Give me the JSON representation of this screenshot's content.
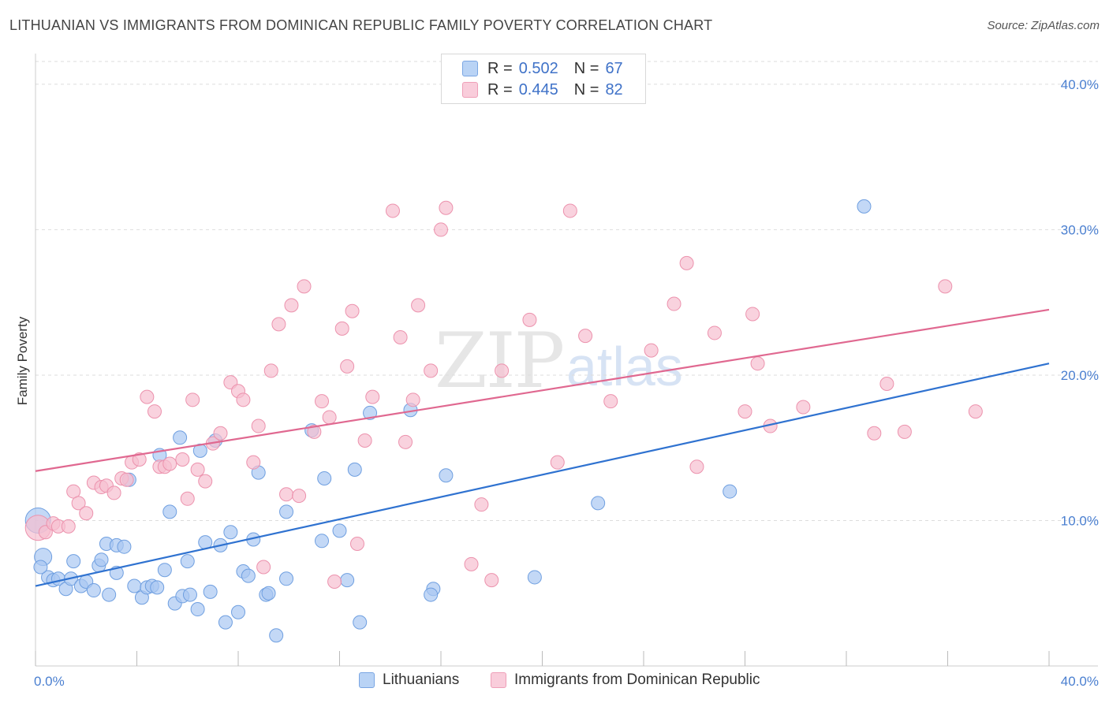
{
  "header": {
    "title": "LITHUANIAN VS IMMIGRANTS FROM DOMINICAN REPUBLIC FAMILY POVERTY CORRELATION CHART",
    "source": "Source: ZipAtlas.com"
  },
  "watermark": {
    "zip": "ZIP",
    "atlas": "atlas"
  },
  "legend": {
    "rows": [
      {
        "r_label": "R =",
        "r_value": "0.502",
        "n_label": "N =",
        "n_value": "67"
      },
      {
        "r_label": "R =",
        "r_value": "0.445",
        "n_label": "N =",
        "n_value": "82"
      }
    ]
  },
  "bottom_legend": {
    "series1": "Lithuanians",
    "series2": "Immigrants from Dominican Republic"
  },
  "colors": {
    "blue_fill": "#a9c8f2",
    "blue_stroke": "#6f9fe0",
    "blue_line": "#2f72d0",
    "pink_fill": "#f7bfd0",
    "pink_stroke": "#ec92ad",
    "pink_line": "#e06890",
    "tick_text": "#4a7fd0",
    "grid": "#dddddd"
  },
  "chart_data": {
    "type": "scatter",
    "title": "LITHUANIAN VS IMMIGRANTS FROM DOMINICAN REPUBLIC FAMILY POVERTY CORRELATION CHART",
    "xlabel": "",
    "ylabel": "Family Poverty",
    "xlim": [
      0,
      40
    ],
    "ylim": [
      0,
      42
    ],
    "x_tick_labels": [
      "0.0%",
      "40.0%"
    ],
    "y_ticks": [
      10,
      20,
      30,
      40
    ],
    "y_tick_labels": [
      "10.0%",
      "20.0%",
      "30.0%",
      "40.0%"
    ],
    "grid": true,
    "legend_position": "top-center",
    "series": [
      {
        "name": "Lithuanians",
        "r": 0.502,
        "n": 67,
        "trend": {
          "x0": 0,
          "y0": 5.5,
          "x1": 40,
          "y1": 20.8
        },
        "points": [
          [
            0.1,
            10.0
          ],
          [
            0.3,
            7.5
          ],
          [
            0.5,
            6.1
          ],
          [
            0.7,
            5.9
          ],
          [
            0.9,
            6.0
          ],
          [
            1.2,
            5.3
          ],
          [
            1.4,
            6.0
          ],
          [
            1.5,
            7.2
          ],
          [
            1.8,
            5.5
          ],
          [
            2.0,
            5.8
          ],
          [
            2.3,
            5.2
          ],
          [
            2.5,
            6.9
          ],
          [
            2.6,
            7.3
          ],
          [
            2.9,
            4.9
          ],
          [
            2.8,
            8.4
          ],
          [
            3.2,
            8.3
          ],
          [
            3.2,
            6.4
          ],
          [
            3.5,
            8.2
          ],
          [
            3.7,
            12.8
          ],
          [
            3.9,
            5.5
          ],
          [
            4.2,
            4.7
          ],
          [
            4.4,
            5.4
          ],
          [
            4.6,
            5.5
          ],
          [
            4.8,
            5.4
          ],
          [
            4.9,
            14.5
          ],
          [
            5.1,
            6.6
          ],
          [
            5.3,
            10.6
          ],
          [
            5.5,
            4.3
          ],
          [
            5.7,
            15.7
          ],
          [
            5.8,
            4.8
          ],
          [
            6.0,
            7.2
          ],
          [
            6.1,
            4.9
          ],
          [
            6.4,
            3.9
          ],
          [
            6.5,
            14.8
          ],
          [
            6.7,
            8.5
          ],
          [
            6.9,
            5.1
          ],
          [
            7.1,
            15.5
          ],
          [
            7.3,
            8.3
          ],
          [
            7.5,
            3.0
          ],
          [
            7.7,
            9.2
          ],
          [
            8.0,
            3.7
          ],
          [
            8.2,
            6.5
          ],
          [
            8.4,
            6.2
          ],
          [
            8.6,
            8.7
          ],
          [
            8.8,
            13.3
          ],
          [
            9.1,
            4.9
          ],
          [
            9.2,
            5.0
          ],
          [
            9.5,
            2.1
          ],
          [
            9.9,
            10.6
          ],
          [
            9.9,
            6.0
          ],
          [
            10.9,
            16.2
          ],
          [
            11.3,
            8.6
          ],
          [
            11.4,
            12.9
          ],
          [
            12.0,
            9.3
          ],
          [
            12.3,
            5.9
          ],
          [
            12.6,
            13.5
          ],
          [
            12.8,
            3.0
          ],
          [
            13.2,
            17.4
          ],
          [
            14.8,
            17.6
          ],
          [
            15.7,
            5.3
          ],
          [
            15.6,
            4.9
          ],
          [
            16.2,
            13.1
          ],
          [
            19.7,
            6.1
          ],
          [
            22.2,
            11.2
          ],
          [
            27.4,
            12.0
          ],
          [
            32.7,
            31.6
          ],
          [
            0.2,
            6.8
          ]
        ]
      },
      {
        "name": "Immigrants from Dominican Republic",
        "r": 0.445,
        "n": 82,
        "trend": {
          "x0": 0,
          "y0": 13.4,
          "x1": 40,
          "y1": 24.5
        },
        "points": [
          [
            0.1,
            9.5
          ],
          [
            0.4,
            9.2
          ],
          [
            0.7,
            9.8
          ],
          [
            0.9,
            9.6
          ],
          [
            1.3,
            9.6
          ],
          [
            1.5,
            12.0
          ],
          [
            1.7,
            11.2
          ],
          [
            2.0,
            10.5
          ],
          [
            2.3,
            12.6
          ],
          [
            2.6,
            12.3
          ],
          [
            2.8,
            12.4
          ],
          [
            3.1,
            11.9
          ],
          [
            3.4,
            12.9
          ],
          [
            3.6,
            12.8
          ],
          [
            3.8,
            14.0
          ],
          [
            4.1,
            14.2
          ],
          [
            4.4,
            18.5
          ],
          [
            4.7,
            17.5
          ],
          [
            4.9,
            13.7
          ],
          [
            5.1,
            13.7
          ],
          [
            5.3,
            13.9
          ],
          [
            5.8,
            14.2
          ],
          [
            6.0,
            11.5
          ],
          [
            6.2,
            18.3
          ],
          [
            6.4,
            13.5
          ],
          [
            6.7,
            12.7
          ],
          [
            7.0,
            15.3
          ],
          [
            7.3,
            16.0
          ],
          [
            7.7,
            19.5
          ],
          [
            8.0,
            18.9
          ],
          [
            8.2,
            18.3
          ],
          [
            8.6,
            14.0
          ],
          [
            8.8,
            16.5
          ],
          [
            9.0,
            6.8
          ],
          [
            9.3,
            20.3
          ],
          [
            9.6,
            23.5
          ],
          [
            9.9,
            11.8
          ],
          [
            10.1,
            24.8
          ],
          [
            10.4,
            11.7
          ],
          [
            10.6,
            26.1
          ],
          [
            11.0,
            16.1
          ],
          [
            11.3,
            18.2
          ],
          [
            11.6,
            17.1
          ],
          [
            11.8,
            5.8
          ],
          [
            12.1,
            23.2
          ],
          [
            12.3,
            20.6
          ],
          [
            12.5,
            24.4
          ],
          [
            12.7,
            8.4
          ],
          [
            13.0,
            15.5
          ],
          [
            13.3,
            18.5
          ],
          [
            14.1,
            31.3
          ],
          [
            14.4,
            22.6
          ],
          [
            14.6,
            15.4
          ],
          [
            14.9,
            18.3
          ],
          [
            15.1,
            24.8
          ],
          [
            15.6,
            20.3
          ],
          [
            16.0,
            30.0
          ],
          [
            16.2,
            31.5
          ],
          [
            17.2,
            7.0
          ],
          [
            17.6,
            11.1
          ],
          [
            18.0,
            5.9
          ],
          [
            18.4,
            20.3
          ],
          [
            19.5,
            23.8
          ],
          [
            20.6,
            14.0
          ],
          [
            21.1,
            31.3
          ],
          [
            21.7,
            22.7
          ],
          [
            22.7,
            18.2
          ],
          [
            24.3,
            21.7
          ],
          [
            25.2,
            24.9
          ],
          [
            25.7,
            27.7
          ],
          [
            26.1,
            13.7
          ],
          [
            26.8,
            22.9
          ],
          [
            28.0,
            17.5
          ],
          [
            28.3,
            24.2
          ],
          [
            28.5,
            20.8
          ],
          [
            29.0,
            16.5
          ],
          [
            30.3,
            17.8
          ],
          [
            33.1,
            16.0
          ],
          [
            33.6,
            19.4
          ],
          [
            34.3,
            16.1
          ],
          [
            35.9,
            26.1
          ],
          [
            37.1,
            17.5
          ]
        ]
      }
    ]
  }
}
